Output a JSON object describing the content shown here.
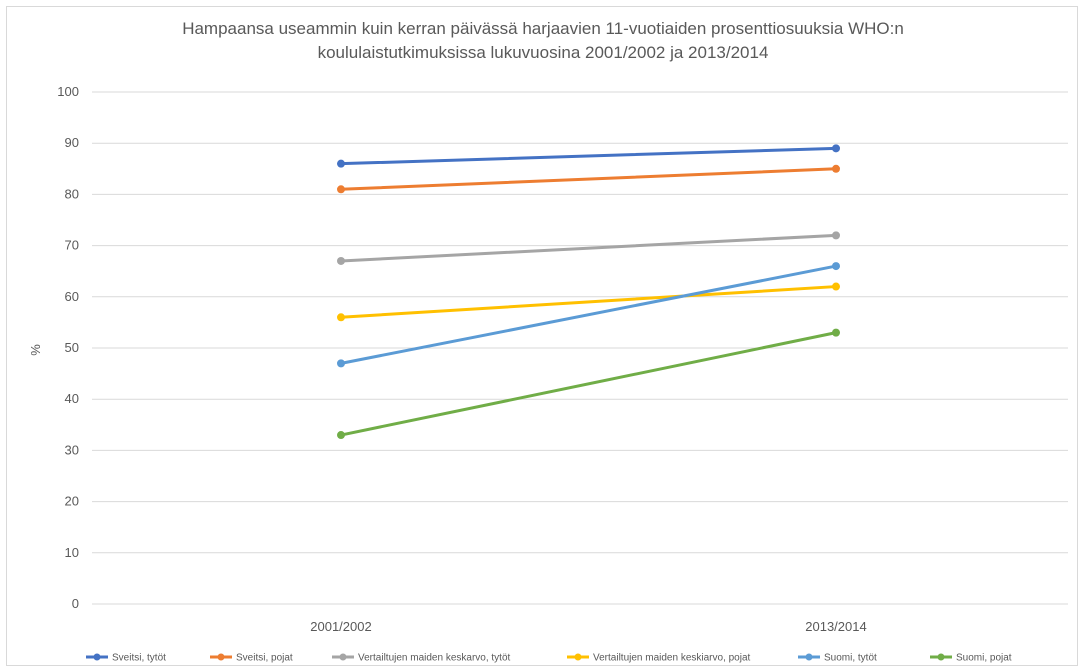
{
  "chart_data": {
    "type": "line",
    "title_lines": [
      "Hampaansa useammin kuin kerran päivässä harjaavien 11-vuotiaiden prosenttiosuuksia WHO:n",
      "koululaistutkimuksissa lukuvuosina 2001/2002 ja 2013/2014"
    ],
    "ylabel": "%",
    "xlabel": "",
    "categories": [
      "2001/2002",
      "2013/2014"
    ],
    "ylim": [
      0,
      100
    ],
    "yticks": [
      0,
      10,
      20,
      30,
      40,
      50,
      60,
      70,
      80,
      90,
      100
    ],
    "grid": true,
    "legend_position": "bottom",
    "series": [
      {
        "name": "Sveitsi, tytöt",
        "values": [
          86,
          89
        ],
        "color": "#4472C4"
      },
      {
        "name": "Sveitsi, pojat",
        "values": [
          81,
          85
        ],
        "color": "#ED7D31"
      },
      {
        "name": "Vertailtujen maiden keskarvo, tytöt",
        "values": [
          67,
          72
        ],
        "color": "#A5A5A5"
      },
      {
        "name": "Vertailtujen maiden keskiarvo, pojat",
        "values": [
          56,
          62
        ],
        "color": "#FFC000"
      },
      {
        "name": "Suomi, tytöt",
        "values": [
          47,
          66
        ],
        "color": "#5B9BD5"
      },
      {
        "name": "Suomi, pojat",
        "values": [
          33,
          53
        ],
        "color": "#70AD47"
      }
    ]
  }
}
